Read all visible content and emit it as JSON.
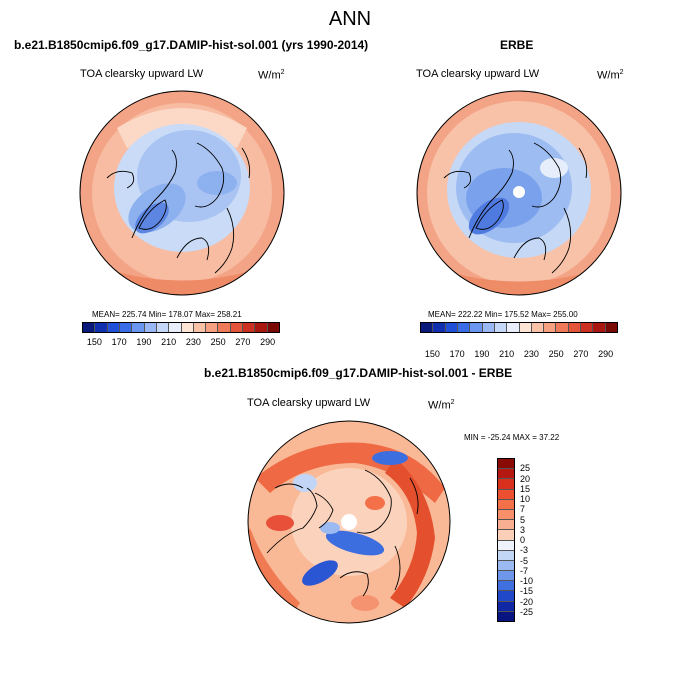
{
  "figure": {
    "title": "ANN"
  },
  "panels": [
    {
      "case": "b.e21.B1850cmip6.f09_g17.DAMIP-hist-sol.001 (yrs 1990-2014)",
      "variable": "TOA clearsky upward LW",
      "units": "W/m",
      "units_sup": "2",
      "stats": "MEAN= 225.74  Min= 178.07  Max= 258.21"
    },
    {
      "case": "ERBE",
      "variable": "TOA clearsky upward LW",
      "units": "W/m",
      "units_sup": "2",
      "stats": "MEAN= 222.22  Min= 175.52  Max= 255.00"
    },
    {
      "case": "b.e21.B1850cmip6.f09_g17.DAMIP-hist-sol.001 - ERBE",
      "variable": "TOA clearsky upward LW",
      "units": "W/m",
      "units_sup": "2",
      "stats": "MIN = -25.24 MAX =  37.22"
    }
  ],
  "colorbar_abs": {
    "ticks": [
      "150",
      "170",
      "190",
      "210",
      "230",
      "250",
      "270",
      "290"
    ],
    "colors": [
      "#0a1a7a",
      "#1030b0",
      "#2050d8",
      "#3a6ce8",
      "#6a96f0",
      "#9ab8f5",
      "#c6d8f8",
      "#e8eefa",
      "#fde4d4",
      "#f9c2a6",
      "#f5a080",
      "#ef7a5a",
      "#e4543a",
      "#cc3020",
      "#a81810",
      "#7a0a06"
    ]
  },
  "colorbar_diff": {
    "ticks": [
      "25",
      "20",
      "15",
      "10",
      "7",
      "5",
      "3",
      "0",
      "-3",
      "-5",
      "-7",
      "-10",
      "-15",
      "-20",
      "-25"
    ],
    "colors": [
      "#8a0a06",
      "#b41810",
      "#d8301c",
      "#ec5030",
      "#f37048",
      "#f79068",
      "#f9b092",
      "#fbcfb8",
      "#eef2fb",
      "#c2d6f6",
      "#9cbaf2",
      "#6e96ea",
      "#4070e0",
      "#2048c8",
      "#1028a4",
      "#081480"
    ]
  }
}
